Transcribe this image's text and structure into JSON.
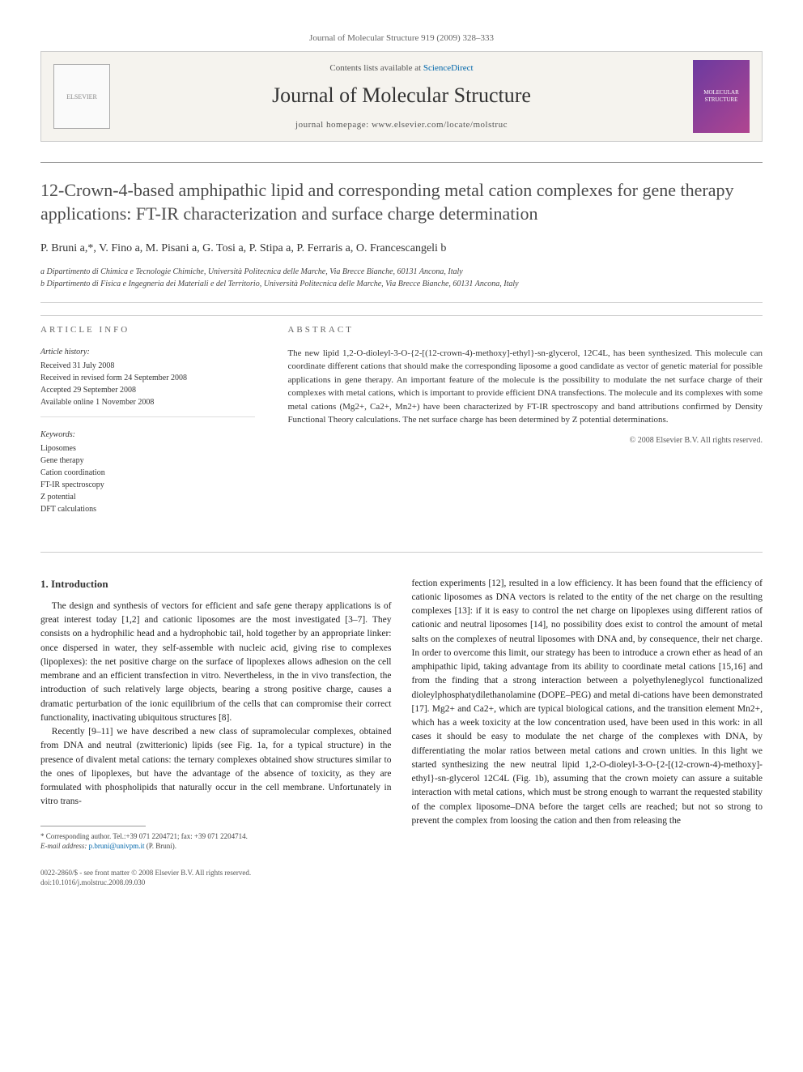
{
  "journal_ref": "Journal of Molecular Structure 919 (2009) 328–333",
  "banner": {
    "publisher_logo": "ELSEVIER",
    "contents_line_prefix": "Contents lists available at ",
    "contents_line_link": "ScienceDirect",
    "journal_name": "Journal of Molecular Structure",
    "homepage_label": "journal homepage: www.elsevier.com/locate/molstruc",
    "cover_text": "MOLECULAR STRUCTURE"
  },
  "title": "12-Crown-4-based amphipathic lipid and corresponding metal cation complexes for gene therapy applications: FT-IR characterization and surface charge determination",
  "authors": "P. Bruni a,*, V. Fino a, M. Pisani a, G. Tosi a, P. Stipa a, P. Ferraris a, O. Francescangeli b",
  "affiliations": {
    "a": "a Dipartimento di Chimica e Tecnologie Chimiche, Università Politecnica delle Marche, Via Brecce Bianche, 60131 Ancona, Italy",
    "b": "b Dipartimento di Fisica e Ingegneria dei Materiali e del Territorio, Università Politecnica delle Marche, Via Brecce Bianche, 60131 Ancona, Italy"
  },
  "article_info": {
    "label": "ARTICLE INFO",
    "history_label": "Article history:",
    "history": [
      "Received 31 July 2008",
      "Received in revised form 24 September 2008",
      "Accepted 29 September 2008",
      "Available online 1 November 2008"
    ],
    "keywords_label": "Keywords:",
    "keywords": [
      "Liposomes",
      "Gene therapy",
      "Cation coordination",
      "FT-IR spectroscopy",
      "Z potential",
      "DFT calculations"
    ]
  },
  "abstract": {
    "label": "ABSTRACT",
    "text": "The new lipid 1,2-O-dioleyl-3-O-{2-[(12-crown-4)-methoxy]-ethyl}-sn-glycerol, 12C4L, has been synthesized. This molecule can coordinate different cations that should make the corresponding liposome a good candidate as vector of genetic material for possible applications in gene therapy. An important feature of the molecule is the possibility to modulate the net surface charge of their complexes with metal cations, which is important to provide efficient DNA transfections. The molecule and its complexes with some metal cations (Mg2+, Ca2+, Mn2+) have been characterized by FT-IR spectroscopy and band attributions confirmed by Density Functional Theory calculations. The net surface charge has been determined by Z potential determinations.",
    "copyright": "© 2008 Elsevier B.V. All rights reserved."
  },
  "body": {
    "section1_heading": "1. Introduction",
    "col1_p1": "The design and synthesis of vectors for efficient and safe gene therapy applications is of great interest today [1,2] and cationic liposomes are the most investigated [3–7]. They consists on a hydrophilic head and a hydrophobic tail, hold together by an appropriate linker: once dispersed in water, they self-assemble with nucleic acid, giving rise to complexes (lipoplexes): the net positive charge on the surface of lipoplexes allows adhesion on the cell membrane and an efficient transfection in vitro. Nevertheless, in the in vivo transfection, the introduction of such relatively large objects, bearing a strong positive charge, causes a dramatic perturbation of the ionic equilibrium of the cells that can compromise their correct functionality, inactivating ubiquitous structures [8].",
    "col1_p2": "Recently [9–11] we have described a new class of supramolecular complexes, obtained from DNA and neutral (zwitterionic) lipids (see Fig. 1a, for a typical structure) in the presence of divalent metal cations: the ternary complexes obtained show structures similar to the ones of lipoplexes, but have the advantage of the absence of toxicity, as they are formulated with phospholipids that naturally occur in the cell membrane. Unfortunately in vitro trans-",
    "col2_p1": "fection experiments [12], resulted in a low efficiency. It has been found that the efficiency of cationic liposomes as DNA vectors is related to the entity of the net charge on the resulting complexes [13]: if it is easy to control the net charge on lipoplexes using different ratios of cationic and neutral liposomes [14], no possibility does exist to control the amount of metal salts on the complexes of neutral liposomes with DNA and, by consequence, their net charge. In order to overcome this limit, our strategy has been to introduce a crown ether as head of an amphipathic lipid, taking advantage from its ability to coordinate metal cations [15,16] and from the finding that a strong interaction between a polyethyleneglycol functionalized dioleylphosphatydilethanolamine (DOPE–PEG) and metal di-cations have been demonstrated [17]. Mg2+ and Ca2+, which are typical biological cations, and the transition element Mn2+, which has a week toxicity at the low concentration used, have been used in this work: in all cases it should be easy to modulate the net charge of the complexes with DNA, by differentiating the molar ratios between metal cations and crown unities. In this light we started synthesizing the new neutral lipid 1,2-O-dioleyl-3-O-{2-[(12-crown-4)-methoxy]-ethyl}-sn-glycerol 12C4L (Fig. 1b), assuming that the crown moiety can assure a suitable interaction with metal cations, which must be strong enough to warrant the requested stability of the complex liposome–DNA before the target cells are reached; but not so strong to prevent the complex from loosing the cation and then from releasing the"
  },
  "footnote": {
    "corr": "* Corresponding author. Tel.:+39 071 2204721; fax: +39 071 2204714.",
    "email_label": "E-mail address:",
    "email": "p.bruni@univpm.it",
    "email_who": "(P. Bruni)."
  },
  "footer": {
    "issn": "0022-2860/$ - see front matter © 2008 Elsevier B.V. All rights reserved.",
    "doi": "doi:10.1016/j.molstruc.2008.09.030"
  }
}
